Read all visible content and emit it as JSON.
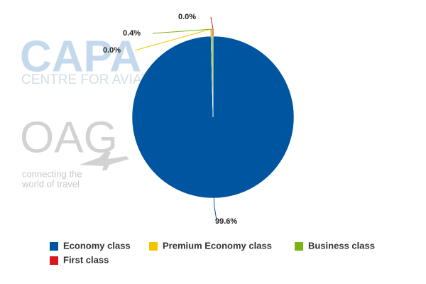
{
  "chart_data": {
    "type": "pie",
    "categories": [
      "Economy class",
      "Premium Economy class",
      "Business class",
      "First class"
    ],
    "values": [
      99.6,
      0.0,
      0.4,
      0.0
    ],
    "value_labels": [
      "99.6%",
      "0.0%",
      "0.4%",
      "0.0%"
    ],
    "colors": [
      "#0055a0",
      "#f5c400",
      "#7ab317",
      "#d7191c"
    ],
    "watermarks": [
      "CAPA",
      "CENTRE FOR AVIATION",
      "OAG",
      "connecting the",
      "world of travel"
    ]
  }
}
